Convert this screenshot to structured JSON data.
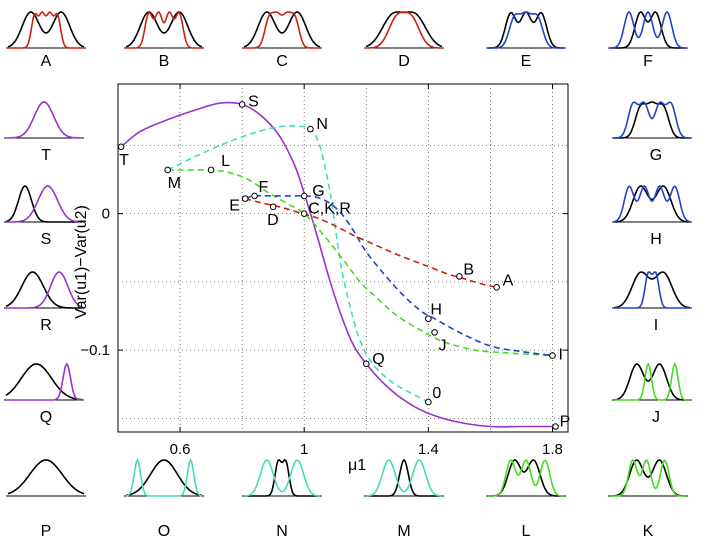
{
  "chart_data": {
    "type": "line",
    "xlabel": "μ1",
    "ylabel": "Var(u1)−Var(u2)",
    "xlim": [
      0.4,
      1.85
    ],
    "ylim": [
      -0.16,
      0.095
    ],
    "xticks": [
      0.6,
      1,
      1.4,
      1.8
    ],
    "xtick_labels": [
      "0.6",
      "1",
      "1.4",
      "1.8"
    ],
    "yticks": [
      0,
      -0.1
    ],
    "ytick_labels": [
      "0",
      "−0.1"
    ],
    "grid": true,
    "colors": {
      "S_curve": "#9933cc",
      "N_curve": "#44ddbb",
      "L_curve": "#44dd22",
      "G_curve": "#2244cc",
      "A_curve": "#cc2211",
      "reference": "#000000"
    },
    "series": [
      {
        "name": "S-curve",
        "style": "solid",
        "color": "#9933cc",
        "x": [
          0.41,
          0.47,
          0.55,
          0.65,
          0.73,
          0.8,
          0.86,
          0.92,
          0.97,
          1.0,
          1.04,
          1.08,
          1.12,
          1.16,
          1.2,
          1.25,
          1.3,
          1.36,
          1.42,
          1.5,
          1.6,
          1.7,
          1.81
        ],
        "y": [
          0.049,
          0.06,
          0.068,
          0.076,
          0.081,
          0.08,
          0.072,
          0.057,
          0.035,
          0.015,
          -0.015,
          -0.047,
          -0.075,
          -0.097,
          -0.11,
          -0.123,
          -0.133,
          -0.142,
          -0.148,
          -0.153,
          -0.156,
          -0.156,
          -0.156
        ]
      },
      {
        "name": "N-curve",
        "style": "dashed",
        "color": "#44ddbb",
        "x": [
          0.56,
          0.65,
          0.75,
          0.85,
          0.93,
          0.98,
          1.02,
          1.05,
          1.08,
          1.1,
          1.12,
          1.15,
          1.18,
          1.22,
          1.28,
          1.34,
          1.4
        ],
        "y": [
          0.032,
          0.042,
          0.052,
          0.06,
          0.064,
          0.064,
          0.062,
          0.05,
          0.02,
          -0.01,
          -0.04,
          -0.07,
          -0.093,
          -0.11,
          -0.123,
          -0.131,
          -0.138
        ]
      },
      {
        "name": "L-curve",
        "style": "dashed",
        "color": "#44dd22",
        "x": [
          0.56,
          0.62,
          0.7,
          0.76,
          0.82,
          0.88,
          0.94,
          1.0,
          1.06,
          1.12,
          1.18,
          1.24,
          1.3,
          1.38,
          1.45,
          1.55,
          1.65,
          1.8
        ],
        "y": [
          0.032,
          0.032,
          0.032,
          0.03,
          0.025,
          0.016,
          0.008,
          0.0,
          -0.015,
          -0.032,
          -0.05,
          -0.063,
          -0.075,
          -0.086,
          -0.094,
          -0.1,
          -0.102,
          -0.104
        ]
      },
      {
        "name": "G-curve",
        "style": "dashed",
        "color": "#2244cc",
        "x": [
          0.81,
          0.84,
          0.9,
          0.96,
          1.0,
          1.04,
          1.08,
          1.12,
          1.16,
          1.2,
          1.26,
          1.32,
          1.38,
          1.42,
          1.5,
          1.6,
          1.7,
          1.8
        ],
        "y": [
          0.011,
          0.013,
          0.013,
          0.013,
          0.013,
          0.012,
          0.008,
          0.0,
          -0.013,
          -0.028,
          -0.045,
          -0.06,
          -0.072,
          -0.077,
          -0.087,
          -0.097,
          -0.101,
          -0.104
        ]
      },
      {
        "name": "A-curve",
        "style": "dashed",
        "color": "#cc2211",
        "x": [
          0.81,
          0.86,
          0.92,
          0.98,
          1.04,
          1.1,
          1.16,
          1.22,
          1.3,
          1.38,
          1.46,
          1.52,
          1.58,
          1.62
        ],
        "y": [
          0.011,
          0.008,
          0.005,
          0.001,
          -0.003,
          -0.009,
          -0.016,
          -0.022,
          -0.03,
          -0.037,
          -0.044,
          -0.048,
          -0.052,
          -0.054
        ]
      }
    ],
    "points": [
      {
        "label": "S",
        "x": 0.8,
        "y": 0.08
      },
      {
        "label": "T",
        "x": 0.41,
        "y": 0.049
      },
      {
        "label": "N",
        "x": 1.02,
        "y": 0.062
      },
      {
        "label": "M",
        "x": 0.56,
        "y": 0.032
      },
      {
        "label": "L",
        "x": 0.7,
        "y": 0.032
      },
      {
        "label": "F",
        "x": 0.84,
        "y": 0.013
      },
      {
        "label": "G",
        "x": 1.0,
        "y": 0.013
      },
      {
        "label": "E",
        "x": 0.81,
        "y": 0.011
      },
      {
        "label": "D",
        "x": 0.9,
        "y": 0.005
      },
      {
        "label": "C,K,R",
        "x": 1.0,
        "y": 0.0
      },
      {
        "label": "B",
        "x": 1.5,
        "y": -0.046
      },
      {
        "label": "A",
        "x": 1.62,
        "y": -0.054
      },
      {
        "label": "H",
        "x": 1.4,
        "y": -0.077
      },
      {
        "label": "J",
        "x": 1.42,
        "y": -0.087
      },
      {
        "label": "I",
        "x": 1.8,
        "y": -0.104
      },
      {
        "label": "Q",
        "x": 1.2,
        "y": -0.11
      },
      {
        "label": "0",
        "x": 1.4,
        "y": -0.138
      },
      {
        "label": "P",
        "x": 1.81,
        "y": -0.156
      }
    ]
  },
  "panels": {
    "top": [
      "A",
      "B",
      "C",
      "D",
      "E",
      "F"
    ],
    "left": [
      "T",
      "S",
      "R",
      "Q"
    ],
    "right": [
      "G",
      "H",
      "I",
      "J"
    ],
    "bottom": [
      "P",
      "O",
      "N",
      "M",
      "L",
      "K"
    ]
  }
}
